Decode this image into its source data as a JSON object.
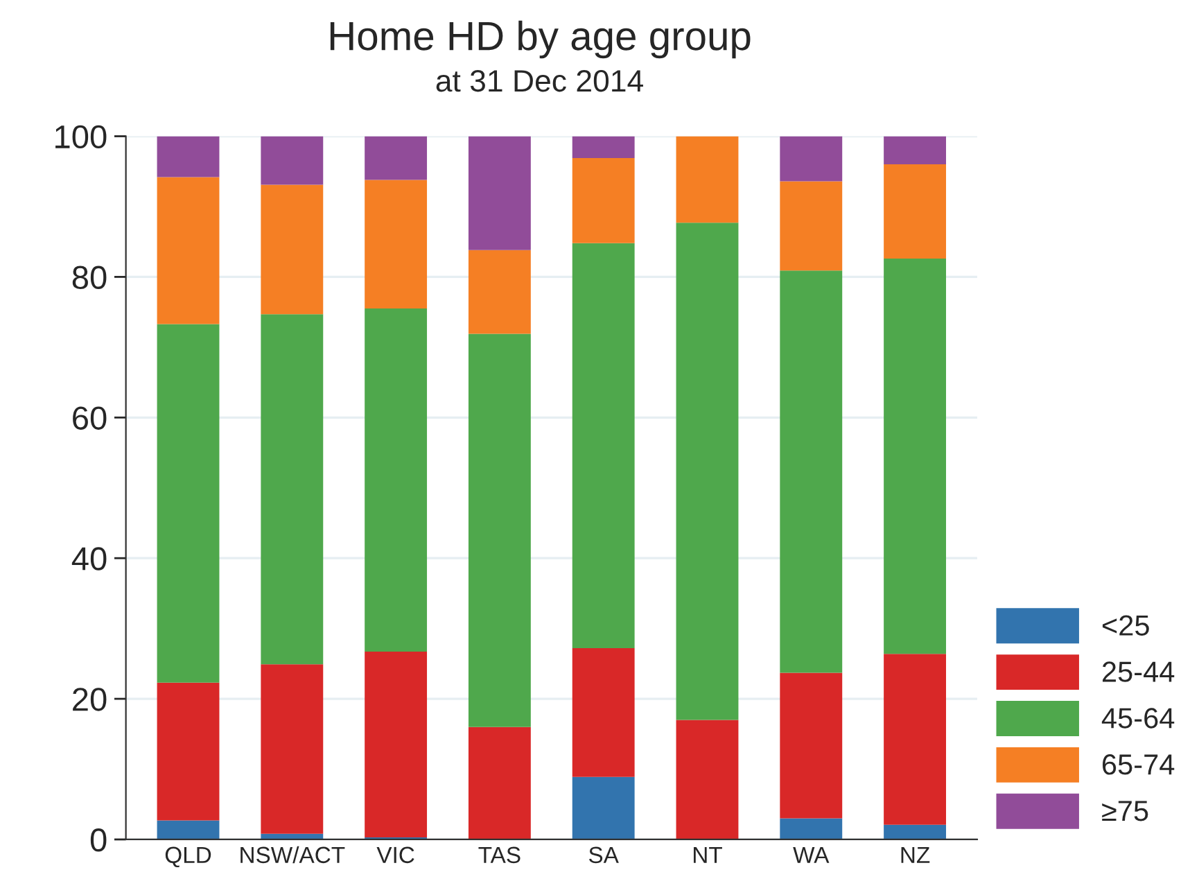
{
  "chart_data": {
    "type": "bar",
    "title": "Home HD by age group",
    "subtitle": "at 31 Dec 2014",
    "categories": [
      "QLD",
      "NSW/ACT",
      "VIC",
      "TAS",
      "SA",
      "NT",
      "WA",
      "NZ"
    ],
    "stacked": true,
    "series": [
      {
        "name": "<25",
        "color": "#3274ae",
        "values": [
          2.7,
          0.8,
          0.3,
          0,
          8.9,
          0,
          3.0,
          2.1
        ]
      },
      {
        "name": "25-44",
        "color": "#d92828",
        "values": [
          19.6,
          24.1,
          26.4,
          16.0,
          18.3,
          17.0,
          20.7,
          24.3
        ]
      },
      {
        "name": "45-64",
        "color": "#4fa84c",
        "values": [
          51.0,
          49.8,
          48.8,
          55.9,
          57.6,
          70.7,
          57.2,
          56.2
        ]
      },
      {
        "name": "65-74",
        "color": "#f57f24",
        "values": [
          20.9,
          18.4,
          18.3,
          11.9,
          12.1,
          12.3,
          12.7,
          13.4
        ]
      },
      {
        "name": "≥75",
        "color": "#914c99",
        "values": [
          5.8,
          6.9,
          6.2,
          16.2,
          3.1,
          0,
          6.4,
          4.0
        ]
      }
    ],
    "ylim": [
      0,
      100
    ],
    "yticks": [
      0,
      20,
      40,
      60,
      80,
      100
    ],
    "grid": "y",
    "legend": "right"
  }
}
